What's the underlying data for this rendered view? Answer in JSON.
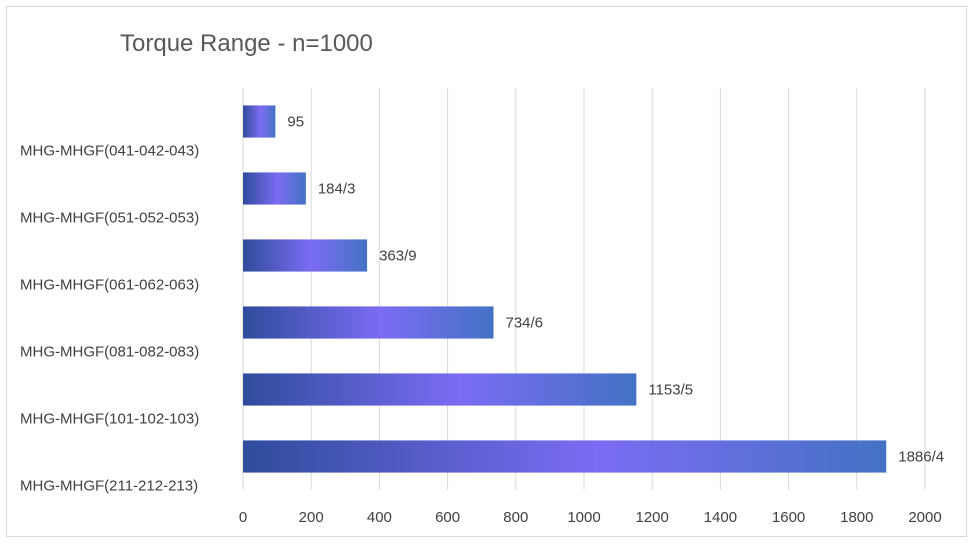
{
  "chart_data": {
    "type": "bar",
    "orientation": "horizontal",
    "title": "Torque Range - n=1000",
    "categories": [
      "MHG-MHGF(041-042-043)",
      "MHG-MHGF(051-052-053)",
      "MHG-MHGF(061-062-063)",
      "MHG-MHGF(081-082-083)",
      "MHG-MHGF(101-102-103)",
      "MHG-MHGF(211-212-213)"
    ],
    "values": [
      95,
      184.3,
      363.9,
      734.6,
      1153.5,
      1886.4
    ],
    "data_labels": [
      "95",
      "184/3",
      "363/9",
      "734/6",
      "1153/5",
      "1886/4"
    ],
    "xlim": [
      0,
      2000
    ],
    "x_ticks": [
      0,
      200,
      400,
      600,
      800,
      1000,
      1200,
      1400,
      1600,
      1800,
      2000
    ],
    "grid": true,
    "legend": "none",
    "colors": {
      "bar_dark": "#2f4c9c",
      "bar_mid": "#7b6cf3",
      "bar_light": "#4472c4",
      "grid": "#d9d9d9",
      "text": "#404040"
    }
  }
}
